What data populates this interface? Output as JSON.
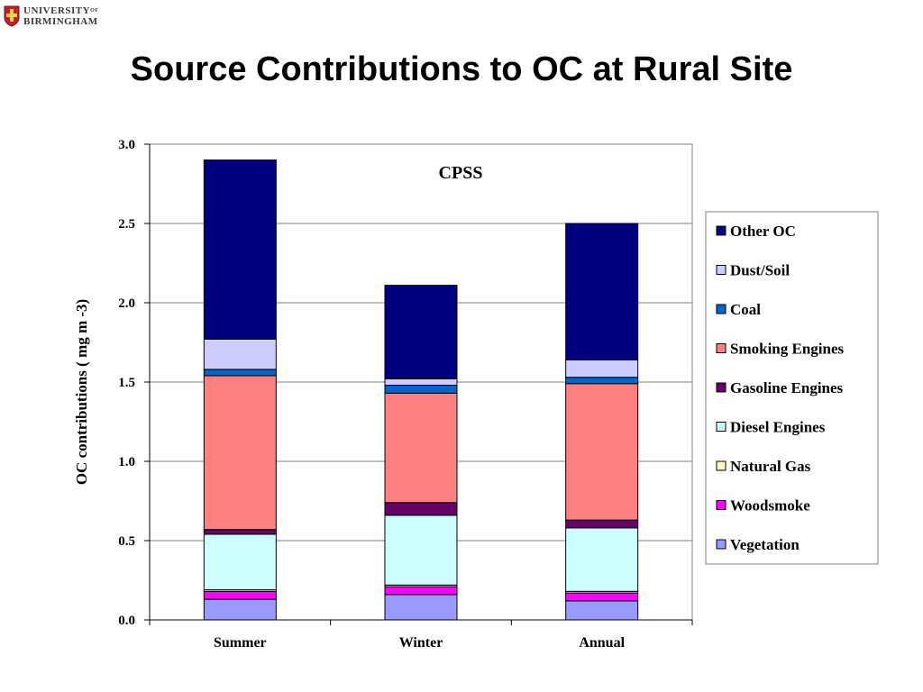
{
  "logo": {
    "line1": "UNIVERSITY",
    "line1_sup": "OF",
    "line2": "BIRMINGHAM"
  },
  "slide_title": "Source Contributions to OC at Rural Site",
  "chart_data": {
    "type": "bar",
    "stacked": true,
    "categories": [
      "Summer",
      "Winter",
      "Annual"
    ],
    "ylabel": "OC contributions ( mg m -3)",
    "xlabel": "",
    "ylim": [
      0,
      3.0
    ],
    "yticks": [
      "0.0",
      "0.5",
      "1.0",
      "1.5",
      "2.0",
      "2.5",
      "3.0"
    ],
    "ytick_values": [
      0,
      0.5,
      1.0,
      1.5,
      2.0,
      2.5,
      3.0
    ],
    "grid": true,
    "annotation": "CPSS",
    "legend_position": "right",
    "series": [
      {
        "name": "Vegetation",
        "color": "#9999ff",
        "values": [
          0.13,
          0.16,
          0.12
        ]
      },
      {
        "name": "Woodsmoke",
        "color": "#ff00ff",
        "values": [
          0.05,
          0.05,
          0.05
        ]
      },
      {
        "name": "Natural Gas",
        "color": "#ffffcc",
        "values": [
          0.01,
          0.01,
          0.01
        ]
      },
      {
        "name": "Diesel Engines",
        "color": "#ccffff",
        "values": [
          0.35,
          0.44,
          0.4
        ]
      },
      {
        "name": "Gasoline Engines",
        "color": "#660066",
        "values": [
          0.03,
          0.08,
          0.05
        ]
      },
      {
        "name": "Smoking Engines",
        "color": "#ff8080",
        "values": [
          0.97,
          0.69,
          0.86
        ]
      },
      {
        "name": "Coal",
        "color": "#0066cc",
        "values": [
          0.04,
          0.05,
          0.04
        ]
      },
      {
        "name": "Dust/Soil",
        "color": "#ccccff",
        "values": [
          0.19,
          0.04,
          0.11
        ]
      },
      {
        "name": "Other OC",
        "color": "#000080",
        "values": [
          1.13,
          0.59,
          0.86
        ]
      }
    ]
  }
}
